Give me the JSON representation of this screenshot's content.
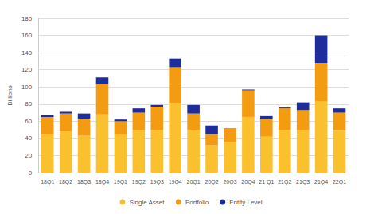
{
  "chart_data": {
    "type": "bar",
    "stacked": true,
    "y_label": "Billions",
    "categories": [
      "18Q1",
      "18Q2",
      "18Q3",
      "18Q4",
      "19Q1",
      "19Q2",
      "19Q3",
      "19Q4",
      "20Q1",
      "20Q2",
      "20Q3",
      "20Q4",
      "21 Q1",
      "21Q2",
      "21Q3",
      "21Q4",
      "22Q1"
    ],
    "series": [
      {
        "name": "Single Asset",
        "color": "#fbc02d",
        "values": [
          44,
          48,
          43,
          68,
          44,
          50,
          50,
          81,
          50,
          32,
          35,
          65,
          42,
          50,
          50,
          83,
          49
        ]
      },
      {
        "name": "Portfolio",
        "color": "#f39c12",
        "values": [
          21,
          21,
          20,
          36,
          16,
          20,
          27,
          42,
          19,
          13,
          17,
          31,
          21,
          25,
          23,
          45,
          21
        ]
      },
      {
        "name": "Entity Level",
        "color": "#1f2d9c",
        "values": [
          2,
          2,
          6,
          7,
          2,
          5,
          2,
          10,
          10,
          10,
          0,
          1,
          3,
          1,
          9,
          32,
          5
        ]
      }
    ],
    "ylim": [
      0,
      180
    ],
    "yticks": [
      0,
      20,
      40,
      60,
      80,
      100,
      120,
      140,
      160,
      180
    ],
    "grid": true,
    "legend": "bottom"
  }
}
